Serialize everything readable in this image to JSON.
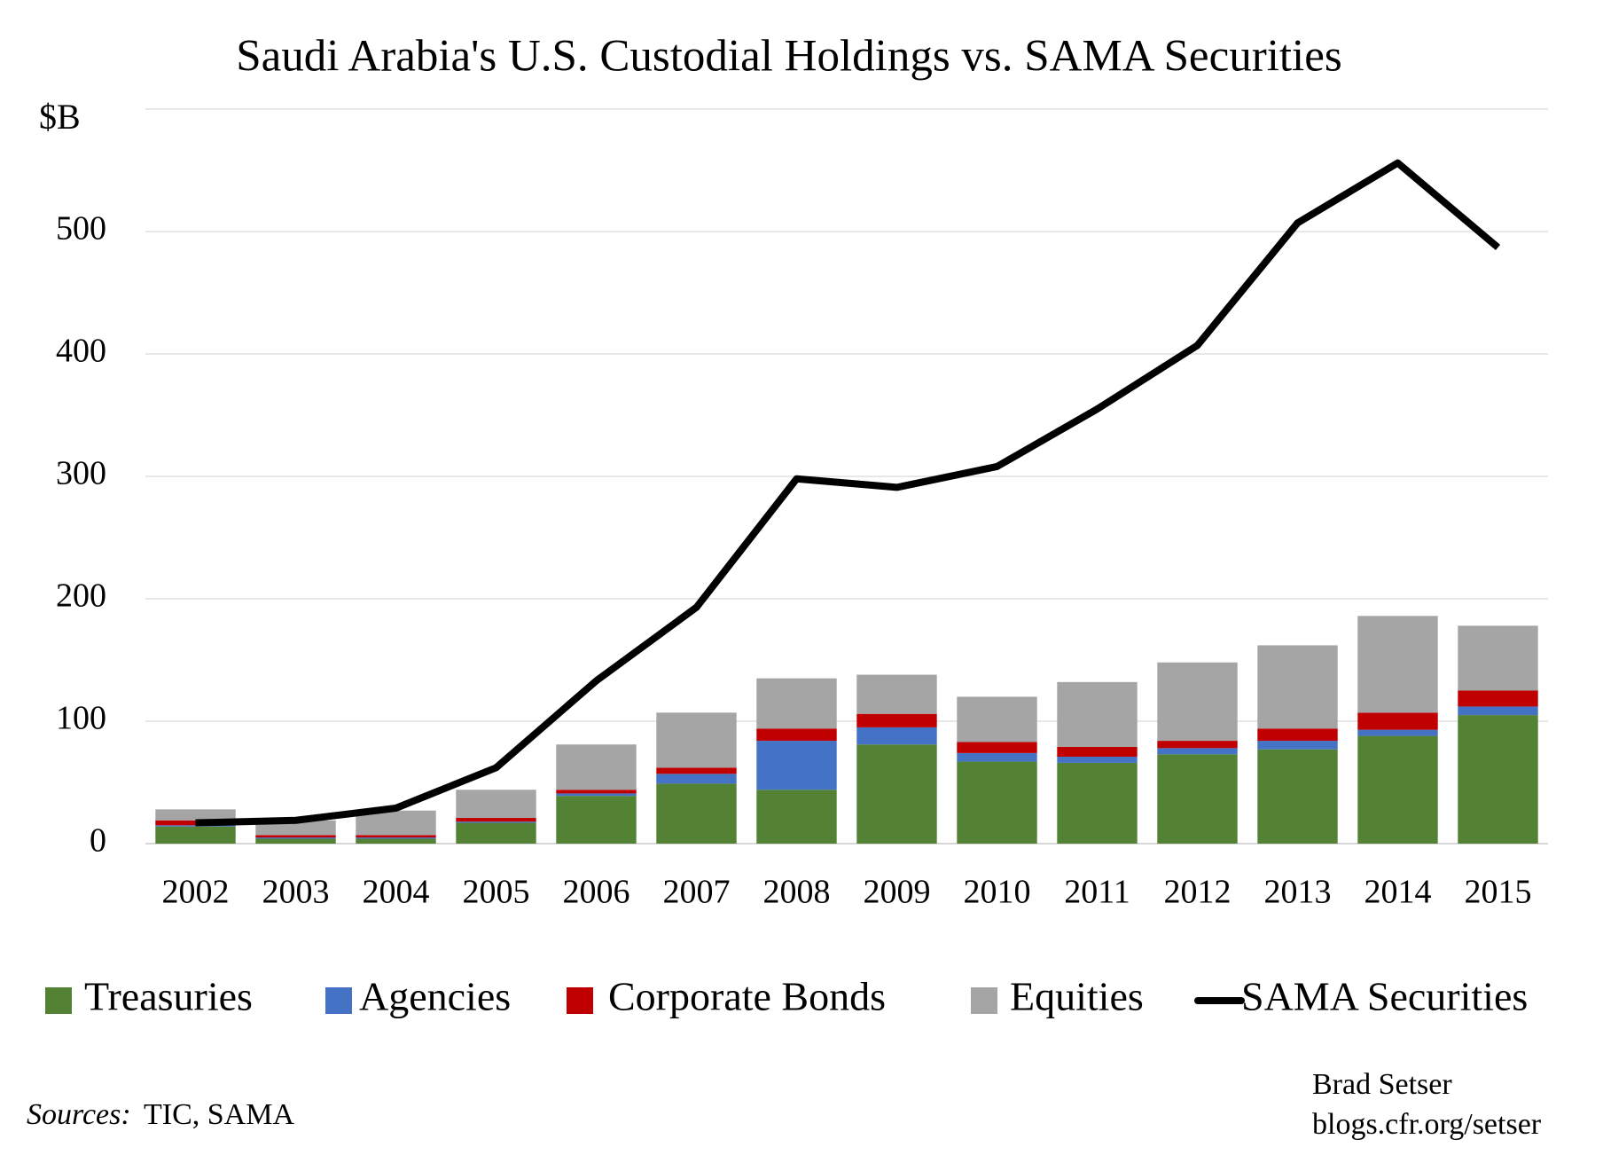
{
  "chart_data": {
    "type": "bar",
    "title": "Saudi Arabia's U.S. Custodial Holdings vs. SAMA Securities",
    "y_label": "$B",
    "categories": [
      "2002",
      "2003",
      "2004",
      "2005",
      "2006",
      "2007",
      "2008",
      "2009",
      "2010",
      "2011",
      "2012",
      "2013",
      "2014",
      "2015"
    ],
    "stacked": true,
    "series": [
      {
        "name": "Treasuries",
        "color": "#548235",
        "values": [
          14,
          4,
          4,
          17,
          39,
          49,
          44,
          81,
          67,
          66,
          73,
          77,
          88,
          105
        ]
      },
      {
        "name": "Agencies",
        "color": "#4472c4",
        "values": [
          1,
          1,
          1,
          1,
          2,
          8,
          40,
          14,
          7,
          5,
          5,
          7,
          5,
          7
        ]
      },
      {
        "name": "Corporate Bonds",
        "color": "#c00000",
        "values": [
          4,
          2,
          2,
          3,
          3,
          5,
          10,
          11,
          9,
          8,
          6,
          10,
          14,
          13
        ]
      },
      {
        "name": "Equities",
        "color": "#a5a5a5",
        "values": [
          9,
          12,
          20,
          23,
          37,
          45,
          41,
          32,
          37,
          53,
          64,
          68,
          79,
          53
        ]
      },
      {
        "name": "SAMA Securities",
        "color": "#000000",
        "type": "line",
        "values": [
          17,
          19,
          29,
          62,
          133,
          193,
          298,
          291,
          308,
          355,
          407,
          507,
          556,
          487
        ]
      }
    ],
    "ylim": [
      0,
      600
    ],
    "yticks": [
      0,
      100,
      200,
      300,
      400,
      500
    ],
    "grid": true,
    "source_label": "Sources:",
    "source": "TIC, SAMA",
    "credits": [
      "Brad Setser",
      "blogs.cfr.org/setser"
    ]
  }
}
